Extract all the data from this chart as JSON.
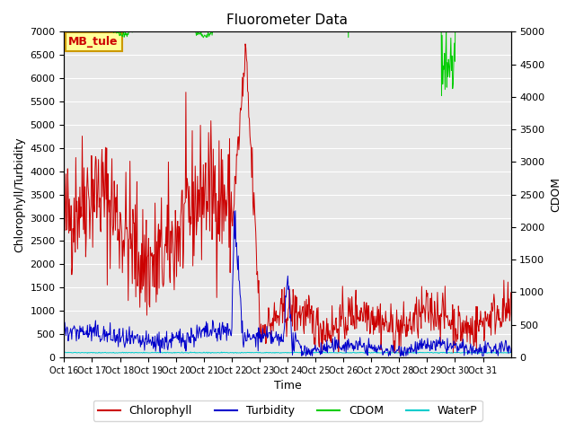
{
  "title": "Fluorometer Data",
  "ylabel_left": "Chlorophyll/Turbidity",
  "ylabel_right": "CDOM",
  "xlabel": "Time",
  "ylim_left": [
    0,
    7000
  ],
  "ylim_right": [
    0,
    5000
  ],
  "xtick_labels": [
    "Oct 16",
    "Oct 17",
    "Oct 18",
    "Oct 19",
    "Oct 20",
    "Oct 21",
    "Oct 22",
    "Oct 23",
    "Oct 24",
    "Oct 25",
    "Oct 26",
    "Oct 27",
    "Oct 28",
    "Oct 29",
    "Oct 30",
    "Oct 31"
  ],
  "xtick_positions": [
    0,
    1,
    2,
    3,
    4,
    5,
    6,
    7,
    8,
    9,
    10,
    11,
    12,
    13,
    14,
    15
  ],
  "colors": {
    "chlorophyll": "#cc0000",
    "turbidity": "#0000cc",
    "cdom": "#00cc00",
    "waterp": "#00cccc",
    "background": "#e8e8e8",
    "annotation_bg": "#ffff99",
    "annotation_border": "#cc9900",
    "annotation_text": "#cc0000"
  },
  "annotation_text": "MB_tule",
  "legend_items": [
    "Chlorophyll",
    "Turbidity",
    "CDOM",
    "WaterP"
  ],
  "n_days": 16,
  "seed": 42
}
